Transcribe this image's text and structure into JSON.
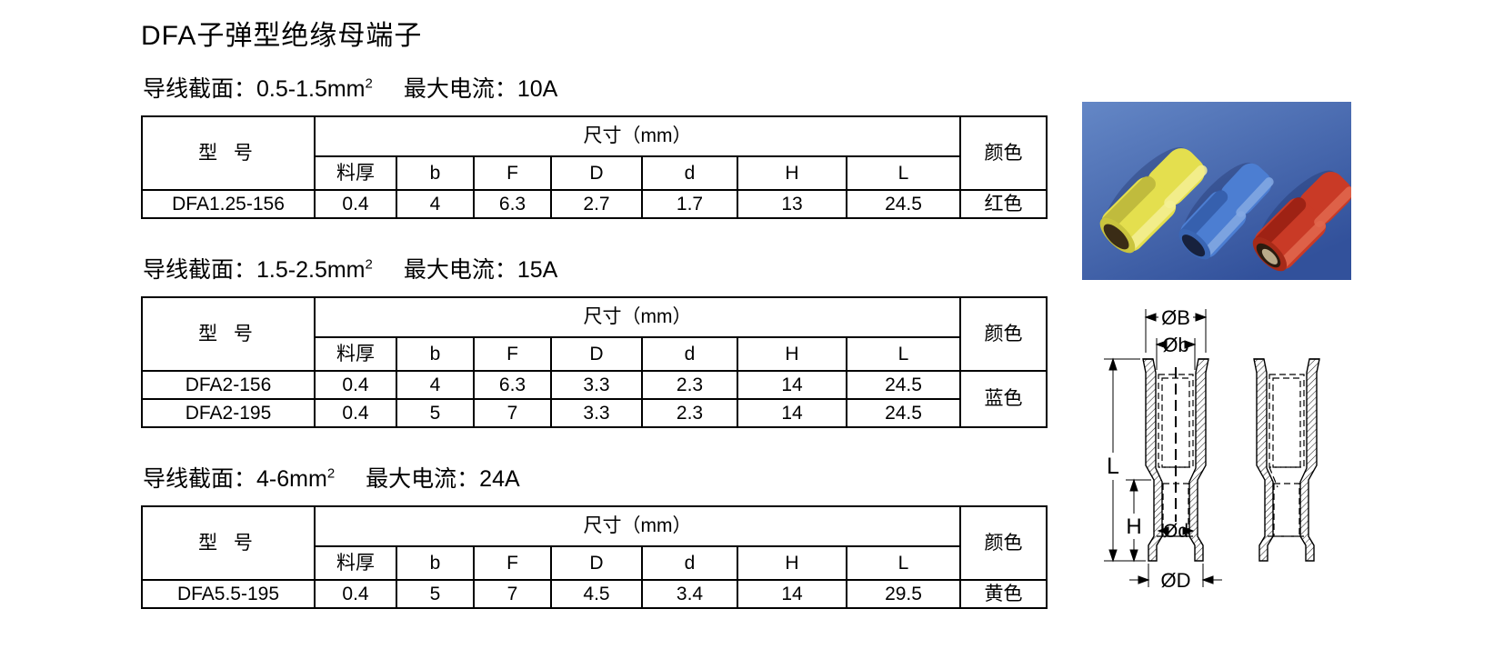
{
  "page_title": "DFA子弹型绝缘母端子",
  "tables_common": {
    "model_header": "型 号",
    "size_header": "尺寸（mm）",
    "color_header": "颜色",
    "sub_headers": [
      "料厚",
      "b",
      "F",
      "D",
      "d",
      "H",
      "L"
    ]
  },
  "sections": [
    {
      "subtitle": {
        "wire_label": "导线截面：",
        "wire_value": "0.5-1.5mm",
        "wire_sup": "2",
        "current_label": "最大电流：",
        "current_value": "10A"
      },
      "rows": [
        {
          "model": "DFA1.25-156",
          "values": [
            "0.4",
            "4",
            "6.3",
            "2.7",
            "1.7",
            "13",
            "24.5"
          ]
        }
      ],
      "color": "红色"
    },
    {
      "subtitle": {
        "wire_label": "导线截面：",
        "wire_value": "1.5-2.5mm",
        "wire_sup": "2",
        "current_label": "最大电流：",
        "current_value": "15A"
      },
      "rows": [
        {
          "model": "DFA2-156",
          "values": [
            "0.4",
            "4",
            "6.3",
            "3.3",
            "2.3",
            "14",
            "24.5"
          ]
        },
        {
          "model": "DFA2-195",
          "values": [
            "0.4",
            "5",
            "7",
            "3.3",
            "2.3",
            "14",
            "24.5"
          ]
        }
      ],
      "color": "蓝色"
    },
    {
      "subtitle": {
        "wire_label": "导线截面：",
        "wire_value": "4-6mm",
        "wire_sup": "2",
        "current_label": "最大电流：",
        "current_value": "24A"
      },
      "rows": [
        {
          "model": "DFA5.5-195",
          "values": [
            "0.4",
            "5",
            "7",
            "4.5",
            "3.4",
            "14",
            "29.5"
          ]
        }
      ],
      "color": "黄色"
    }
  ],
  "diagram_labels": {
    "outer_top_dia": "ØB",
    "inner_top_dia": "Øb",
    "length": "L",
    "entry_height": "H",
    "inner_bottom_dia": "Ød",
    "outer_bottom_dia": "ØD"
  },
  "photo": {
    "background_top": "#6487c6",
    "background_bottom": "#32519b",
    "terminals": [
      {
        "name": "黄色端子",
        "hex": "#e4df4e",
        "shade": "#b6b13a",
        "light": "#f4f095"
      },
      {
        "name": "蓝色端子",
        "hex": "#4c7ed2",
        "shade": "#325ba8",
        "light": "#85a9e3"
      },
      {
        "name": "红色端子",
        "hex": "#c93a26",
        "shade": "#971f12",
        "light": "#e2694f"
      }
    ]
  }
}
